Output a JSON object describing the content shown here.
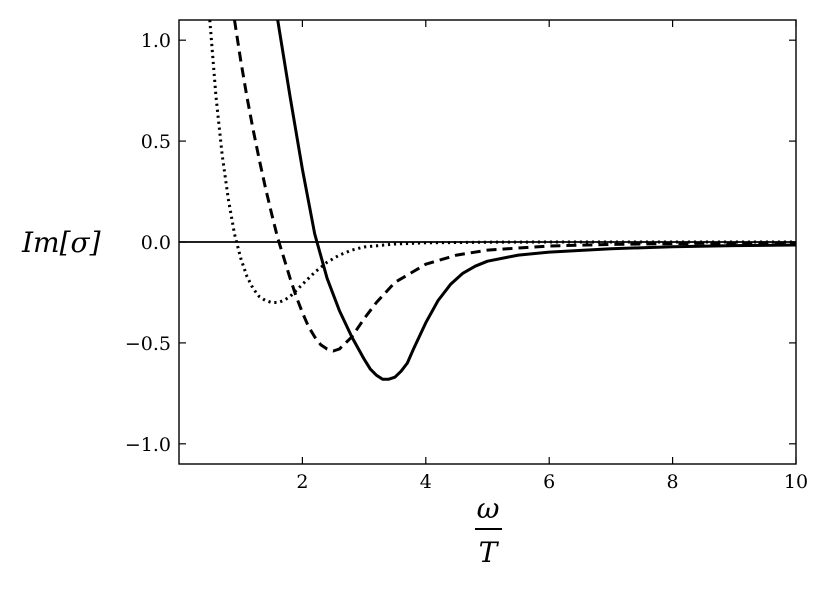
{
  "chart_data": {
    "type": "line",
    "title": "",
    "xlabel_top": "ω",
    "xlabel_bottom": "T",
    "ylabel": "Im[σ]",
    "xlim": [
      0.0,
      10.0
    ],
    "ylim": [
      -1.1,
      1.1
    ],
    "grid": false,
    "legend": "none",
    "x_ticks": [
      2,
      4,
      6,
      8,
      10
    ],
    "y_ticks": [
      -1.0,
      -0.5,
      0.0,
      0.5,
      1.0
    ],
    "x_tick_labels": [
      "2",
      "4",
      "6",
      "8",
      "10"
    ],
    "y_tick_labels": [
      "−1.0",
      "−0.5",
      "0.0",
      "0.5",
      "1.0"
    ],
    "zero_line": 0.0,
    "series": [
      {
        "style": "dotted",
        "x": [
          0.5,
          0.6,
          0.7,
          0.8,
          0.9,
          1.0,
          1.1,
          1.2,
          1.3,
          1.4,
          1.5,
          1.6,
          1.7,
          1.8,
          2.0,
          2.2,
          2.4,
          2.6,
          2.8,
          3.0,
          3.5,
          4.0,
          5.0,
          6.0,
          8.0,
          10.0
        ],
        "y": [
          1.1,
          0.72,
          0.43,
          0.21,
          0.04,
          -0.08,
          -0.17,
          -0.23,
          -0.27,
          -0.29,
          -0.3,
          -0.3,
          -0.29,
          -0.27,
          -0.21,
          -0.15,
          -0.1,
          -0.065,
          -0.04,
          -0.025,
          -0.01,
          -0.004,
          -0.001,
          0.0,
          0.0,
          0.0
        ]
      },
      {
        "style": "dashed",
        "x": [
          0.9,
          1.0,
          1.1,
          1.2,
          1.3,
          1.4,
          1.5,
          1.6,
          1.7,
          1.8,
          1.9,
          2.0,
          2.1,
          2.2,
          2.3,
          2.4,
          2.5,
          2.6,
          2.8,
          3.0,
          3.2,
          3.5,
          4.0,
          4.5,
          5.0,
          6.0,
          7.0,
          8.0,
          9.0,
          10.0
        ],
        "y": [
          1.1,
          0.9,
          0.72,
          0.56,
          0.41,
          0.27,
          0.14,
          0.02,
          -0.08,
          -0.18,
          -0.27,
          -0.35,
          -0.42,
          -0.47,
          -0.51,
          -0.53,
          -0.54,
          -0.53,
          -0.47,
          -0.38,
          -0.3,
          -0.2,
          -0.11,
          -0.065,
          -0.04,
          -0.02,
          -0.012,
          -0.008,
          -0.005,
          -0.004
        ]
      },
      {
        "style": "solid",
        "x": [
          1.6,
          1.8,
          2.0,
          2.2,
          2.4,
          2.6,
          2.8,
          3.0,
          3.1,
          3.2,
          3.3,
          3.4,
          3.5,
          3.6,
          3.7,
          3.8,
          4.0,
          4.2,
          4.4,
          4.6,
          4.8,
          5.0,
          5.5,
          6.0,
          7.0,
          8.0,
          9.0,
          10.0
        ],
        "y": [
          1.1,
          0.72,
          0.36,
          0.04,
          -0.18,
          -0.34,
          -0.47,
          -0.58,
          -0.63,
          -0.66,
          -0.68,
          -0.68,
          -0.67,
          -0.64,
          -0.6,
          -0.53,
          -0.4,
          -0.29,
          -0.21,
          -0.155,
          -0.12,
          -0.095,
          -0.065,
          -0.05,
          -0.033,
          -0.024,
          -0.018,
          -0.015
        ]
      }
    ]
  }
}
